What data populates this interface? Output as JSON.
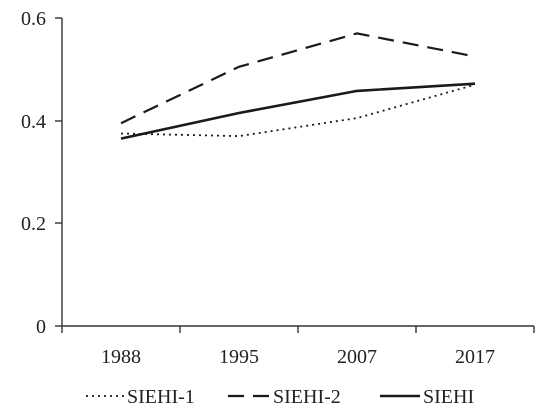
{
  "chart_data": {
    "type": "line",
    "categories": [
      "1988",
      "1995",
      "2007",
      "2017"
    ],
    "series": [
      {
        "name": "SIEHI-1",
        "values": [
          0.375,
          0.37,
          0.405,
          0.47
        ],
        "style": "dotted"
      },
      {
        "name": "SIEHI-2",
        "values": [
          0.395,
          0.505,
          0.57,
          0.525
        ],
        "style": "dashed"
      },
      {
        "name": "SIEHI",
        "values": [
          0.365,
          0.415,
          0.458,
          0.472
        ],
        "style": "solid"
      }
    ],
    "y_ticks": [
      "0",
      "0.2",
      "0.4",
      "0.6"
    ],
    "ylim": [
      0,
      0.6
    ],
    "grid": false,
    "legend_position": "bottom",
    "colors": {
      "lines": "#1a1a1a",
      "axis": "#333333",
      "text": "#222222"
    }
  }
}
